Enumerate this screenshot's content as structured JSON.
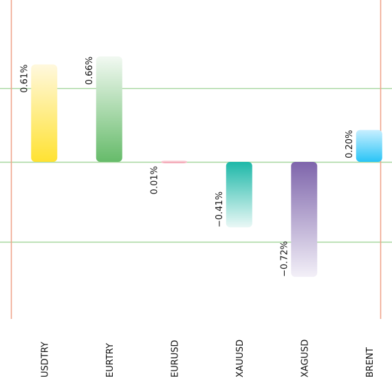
{
  "chart_data": {
    "type": "bar",
    "categories": [
      "USDTRY",
      "EURTRY",
      "EURUSD",
      "XAUUSD",
      "XAGUSD",
      "BRENT"
    ],
    "values": [
      0.61,
      0.66,
      0.01,
      -0.41,
      -0.72,
      0.2
    ],
    "value_labels": [
      "0.61%",
      "0.66%",
      "0.01%",
      "−0.41%",
      "−0.72%",
      "0.20%"
    ],
    "unit": "%",
    "title": "",
    "xlabel": "",
    "ylabel": "",
    "ylim": [
      -0.97,
      0.94
    ],
    "grid": true,
    "gridlines_at": [
      0.46,
      0,
      -0.5
    ],
    "legend": "none",
    "colors": {
      "USDTRY": [
        "#ffe232",
        "#fff8de"
      ],
      "EURTRY": [
        "#66bb6a",
        "#f2f9f2"
      ],
      "EURUSD": [
        "#f19aaa",
        "#fbe3e8"
      ],
      "XAUUSD": [
        "#1db8a8",
        "#eaf8f6"
      ],
      "XAGUSD": [
        "#7e65ab",
        "#f3f0f8"
      ],
      "BRENT": [
        "#29c4f6",
        "#c8efff"
      ],
      "gridline": "#a8d8a0",
      "frame": "#f0a48c"
    }
  }
}
